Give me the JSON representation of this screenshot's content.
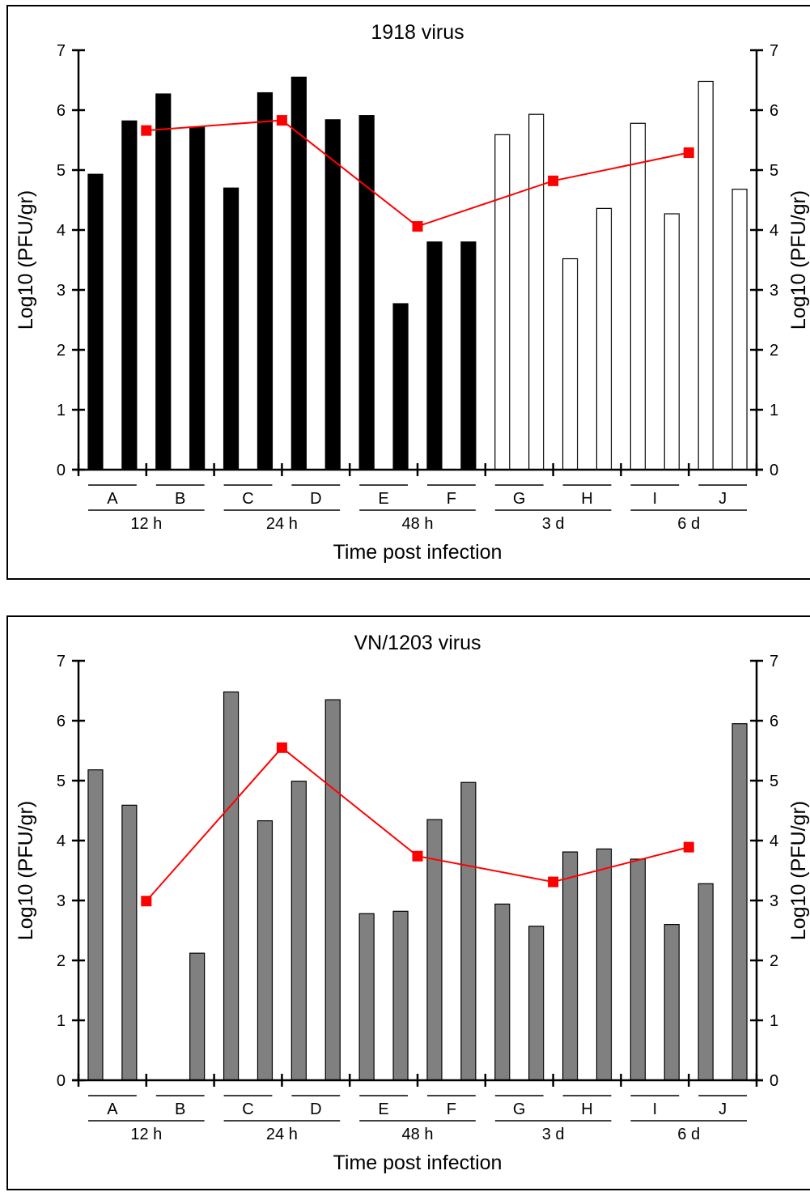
{
  "chart_data": [
    {
      "type": "bar",
      "title": "1918 virus",
      "xlabel": "Time post infection",
      "ylabel": "Log10 (PFU/gr)",
      "ylim": [
        0,
        7
      ],
      "yticks": [
        0,
        1,
        2,
        3,
        4,
        5,
        6,
        7
      ],
      "subgroups": [
        "A",
        "B",
        "C",
        "D",
        "E",
        "F",
        "G",
        "H",
        "I",
        "J"
      ],
      "timepoints": [
        "12 h",
        "24 h",
        "48 h",
        "3 d",
        "6 d"
      ],
      "bar_fills": [
        "#000000",
        "#000000",
        "#000000",
        "#000000",
        "#000000",
        "#000000",
        "#000000",
        "#000000",
        "#000000",
        "#000000",
        "#000000",
        "#000000",
        "#ffffff",
        "#ffffff",
        "#ffffff",
        "#ffffff",
        "#ffffff",
        "#ffffff",
        "#ffffff",
        "#ffffff"
      ],
      "values": [
        4.93,
        5.82,
        6.27,
        5.72,
        4.7,
        6.29,
        6.55,
        5.84,
        5.91,
        2.77,
        3.8,
        3.8,
        5.59,
        5.93,
        3.52,
        4.36,
        5.78,
        4.27,
        6.48,
        4.68
      ],
      "mean_line": {
        "color": "#ff0000",
        "values": [
          5.66,
          5.83,
          4.06,
          4.82,
          5.29
        ]
      }
    },
    {
      "type": "bar",
      "title": "VN/1203 virus",
      "xlabel": "Time post infection",
      "ylabel": "Log10 (PFU/gr)",
      "ylim": [
        0,
        7
      ],
      "yticks": [
        0,
        1,
        2,
        3,
        4,
        5,
        6,
        7
      ],
      "subgroups": [
        "A",
        "B",
        "C",
        "D",
        "E",
        "F",
        "G",
        "H",
        "I",
        "J"
      ],
      "timepoints": [
        "12 h",
        "24 h",
        "48 h",
        "3 d",
        "6 d"
      ],
      "bar_fills": [
        "#808080"
      ],
      "values": [
        5.18,
        4.59,
        null,
        2.12,
        6.48,
        4.33,
        4.99,
        6.35,
        2.78,
        2.82,
        4.35,
        4.97,
        2.94,
        2.57,
        3.81,
        3.86,
        3.69,
        2.6,
        3.28,
        5.95
      ],
      "mean_line": {
        "color": "#ff0000",
        "values": [
          2.99,
          5.55,
          3.74,
          3.31,
          3.89
        ]
      }
    }
  ]
}
